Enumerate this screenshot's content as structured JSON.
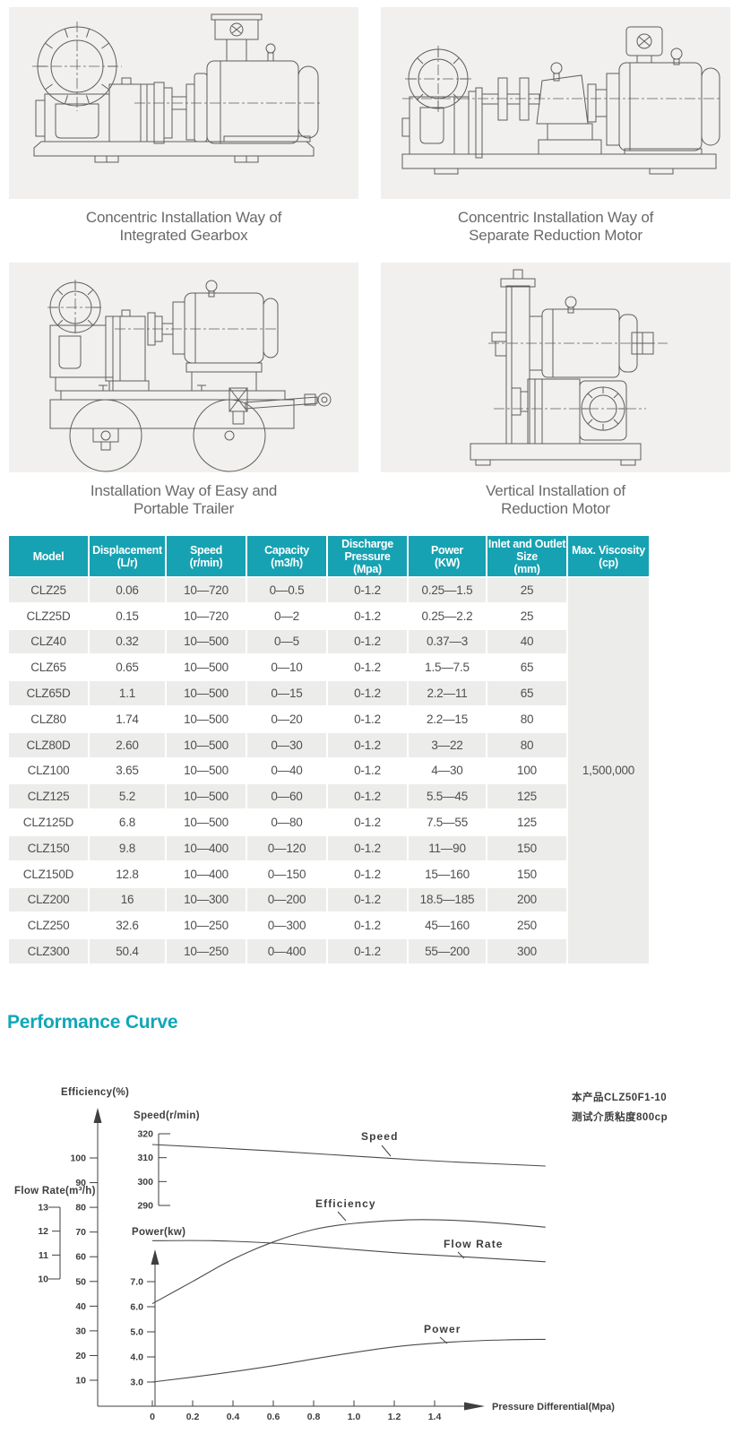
{
  "theme": {
    "teal": "#16a2b2",
    "heading_teal": "#10a7b8",
    "row_gray": "#ececeb",
    "caption_gray": "#6a6a6a",
    "line_gray": "#5e5e5e"
  },
  "drawings": {
    "captions": [
      "Concentric Installation Way of\nIntegrated Gearbox",
      "Concentric Installation Way of\nSeparate Reduction Motor",
      "Installation Way of Easy and\nPortable Trailer",
      "Vertical Installation of\nReduction Motor"
    ]
  },
  "table": {
    "headers": [
      "Model",
      "Displacement\n(L/r)",
      "Speed\n(r/min)",
      "Capacity\n(m3/h)",
      "Discharge Pressure\n(Mpa)",
      "Power\n(KW)",
      "Inlet and Outlet Size\n(mm)",
      "Max. Viscosity\n(cp)"
    ],
    "rows": [
      [
        "CLZ25",
        "0.06",
        "10—720",
        "0—0.5",
        "0-1.2",
        "0.25—1.5",
        "25"
      ],
      [
        "CLZ25D",
        "0.15",
        "10—720",
        "0—2",
        "0-1.2",
        "0.25—2.2",
        "25"
      ],
      [
        "CLZ40",
        "0.32",
        "10—500",
        "0—5",
        "0-1.2",
        "0.37—3",
        "40"
      ],
      [
        "CLZ65",
        "0.65",
        "10—500",
        "0—10",
        "0-1.2",
        "1.5—7.5",
        "65"
      ],
      [
        "CLZ65D",
        "1.1",
        "10—500",
        "0—15",
        "0-1.2",
        "2.2—11",
        "65"
      ],
      [
        "CLZ80",
        "1.74",
        "10—500",
        "0—20",
        "0-1.2",
        "2.2—15",
        "80"
      ],
      [
        "CLZ80D",
        "2.60",
        "10—500",
        "0—30",
        "0-1.2",
        "3—22",
        "80"
      ],
      [
        "CLZ100",
        "3.65",
        "10—500",
        "0—40",
        "0-1.2",
        "4—30",
        "100"
      ],
      [
        "CLZ125",
        "5.2",
        "10—500",
        "0—60",
        "0-1.2",
        "5.5—45",
        "125"
      ],
      [
        "CLZ125D",
        "6.8",
        "10—500",
        "0—80",
        "0-1.2",
        "7.5—55",
        "125"
      ],
      [
        "CLZ150",
        "9.8",
        "10—400",
        "0—120",
        "0-1.2",
        "11—90",
        "150"
      ],
      [
        "CLZ150D",
        "12.8",
        "10—400",
        "0—150",
        "0-1.2",
        "15—160",
        "150"
      ],
      [
        "CLZ200",
        "16",
        "10—300",
        "0—200",
        "0-1.2",
        "18.5—185",
        "200"
      ],
      [
        "CLZ250",
        "32.6",
        "10—250",
        "0—300",
        "0-1.2",
        "45—160",
        "250"
      ],
      [
        "CLZ300",
        "50.4",
        "10—250",
        "0—400",
        "0-1.2",
        "55—200",
        "300"
      ]
    ],
    "max_viscosity": "1,500,000"
  },
  "performance": {
    "heading": "Performance Curve"
  },
  "chart_data": {
    "type": "line",
    "title": "Performance Curve",
    "annotation": "本产品CLZ50F1-10\n测试介质粘度800cp",
    "x_axis": {
      "label": "Pressure Differential(Mpa)",
      "ticks": [
        "0",
        "0.2",
        "0.4",
        "0.6",
        "0.8",
        "1.0",
        "1.2",
        "1.4"
      ],
      "range_drawn": [
        0,
        1.95
      ]
    },
    "y_axes": [
      {
        "id": "efficiency",
        "label": "Efficiency(%)",
        "ticks": [
          "10",
          "20",
          "30",
          "40",
          "50",
          "60",
          "70",
          "80",
          "90",
          "100"
        ]
      },
      {
        "id": "speed",
        "label": "Speed(r/min)",
        "ticks": [
          "290",
          "300",
          "310",
          "320"
        ]
      },
      {
        "id": "flow_rate",
        "label": "Flow Rate(m³/h)",
        "ticks": [
          "10",
          "11",
          "12",
          "13"
        ]
      },
      {
        "id": "power",
        "label": "Power(kw)",
        "ticks": [
          "3.0",
          "4.0",
          "5.0",
          "6.0",
          "7.0"
        ]
      }
    ],
    "series": [
      {
        "name": "Speed",
        "axis": "speed",
        "points": [
          [
            0,
            315.5
          ],
          [
            0.3,
            314.2
          ],
          [
            0.6,
            312.8
          ],
          [
            0.9,
            311.2
          ],
          [
            1.2,
            309.6
          ],
          [
            1.5,
            308.2
          ],
          [
            1.95,
            306.5
          ]
        ]
      },
      {
        "name": "Efficiency",
        "axis": "efficiency",
        "points": [
          [
            0,
            41
          ],
          [
            0.2,
            50
          ],
          [
            0.4,
            59
          ],
          [
            0.6,
            66
          ],
          [
            0.8,
            71
          ],
          [
            1.0,
            73.5
          ],
          [
            1.3,
            75
          ],
          [
            1.6,
            74.3
          ],
          [
            1.95,
            72
          ]
        ]
      },
      {
        "name": "Flow Rate",
        "axis": "flow_rate",
        "points": [
          [
            0,
            11.6
          ],
          [
            0.3,
            11.6
          ],
          [
            0.6,
            11.5
          ],
          [
            0.9,
            11.3
          ],
          [
            1.2,
            11.1
          ],
          [
            1.5,
            10.95
          ],
          [
            1.95,
            10.72
          ]
        ]
      },
      {
        "name": "Power",
        "axis": "power",
        "points": [
          [
            0,
            3.0
          ],
          [
            0.3,
            3.3
          ],
          [
            0.6,
            3.65
          ],
          [
            0.9,
            4.05
          ],
          [
            1.2,
            4.4
          ],
          [
            1.5,
            4.6
          ],
          [
            1.75,
            4.68
          ],
          [
            1.95,
            4.7
          ]
        ]
      }
    ]
  }
}
